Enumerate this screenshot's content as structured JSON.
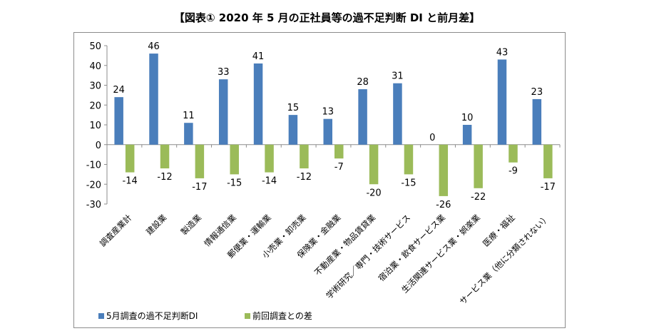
{
  "chart_data": {
    "type": "bar",
    "title": "【図表① 2020 年 5 月の正社員等の過不足判断 DI と前月差】",
    "categories": [
      "調査産業計",
      "建設業",
      "製造業",
      "情報通信業",
      "郵便業・運輸業",
      "小売業・卸売業",
      "保険業・金融業",
      "不動産業・物品賃貸業",
      "学術研究／専門・技術サービス",
      "宿泊業・飲食サービス業",
      "生活関連サービス業・娯楽業",
      "医療・福祉",
      "サービス業（他に分類されない）"
    ],
    "series": [
      {
        "name": "5月調査の過不足判断DI",
        "color": "#4a7ebb",
        "values": [
          24,
          46,
          11,
          33,
          41,
          15,
          13,
          28,
          31,
          0,
          10,
          43,
          23
        ]
      },
      {
        "name": "前回調査との差",
        "color": "#9bbb59",
        "values": [
          -14,
          -12,
          -17,
          -15,
          -14,
          -12,
          -7,
          -20,
          -15,
          -26,
          -22,
          -9,
          -17
        ]
      }
    ],
    "data_labels": {
      "s0": [
        "24",
        "46",
        "11",
        "33",
        "41",
        "15",
        "13",
        "28",
        "31",
        "0",
        "10",
        "43",
        "23"
      ],
      "s1": [
        "-14",
        "-12",
        "-17",
        "-15",
        "-14",
        "-12",
        "-7",
        "-20",
        "-15",
        "-26",
        "-22",
        "-9",
        "-17"
      ]
    },
    "ylim": [
      -30,
      50
    ],
    "yticks": [
      "50",
      "40",
      "30",
      "20",
      "10",
      "0",
      "-10",
      "-20",
      "-30"
    ],
    "xlabel": "",
    "ylabel": "",
    "grid": false,
    "legend": "bottom-left"
  }
}
